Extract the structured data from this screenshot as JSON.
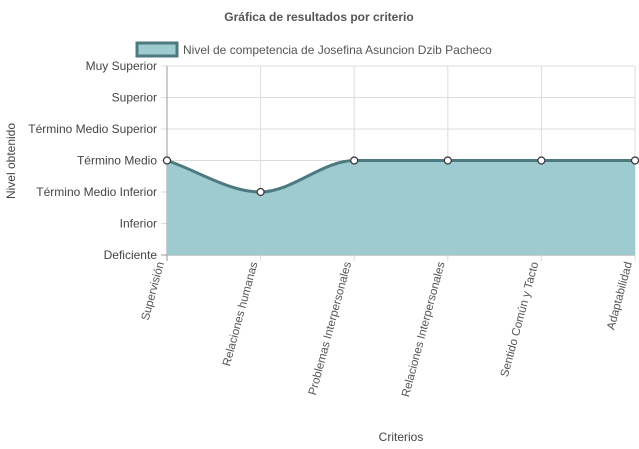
{
  "chart_data": {
    "type": "area",
    "title": "Gráfica de resultados por criterio",
    "xlabel": "Criterios",
    "ylabel": "Nivel obtenido",
    "y_levels": [
      "Deficiente",
      "Inferior",
      "Término Medio Inferior",
      "Término Medio",
      "Término Medio Superior",
      "Superior",
      "Muy Superior"
    ],
    "ylim": [
      0,
      6
    ],
    "categories": [
      "Supervisión",
      "Relaciones humanas",
      "Problemas Interpersonales",
      "Relaciones Interpersonales",
      "Sentido Común y Tacto",
      "Adaptabilidad"
    ],
    "series": [
      {
        "name": "Nivel de competencia de Josefina Asuncion Dzib Pacheco",
        "values": [
          3,
          2,
          3,
          3,
          3,
          3
        ],
        "fill": "#9ecbcf",
        "stroke": "#4d7a80"
      }
    ],
    "grid": true,
    "legend_position": "top"
  }
}
